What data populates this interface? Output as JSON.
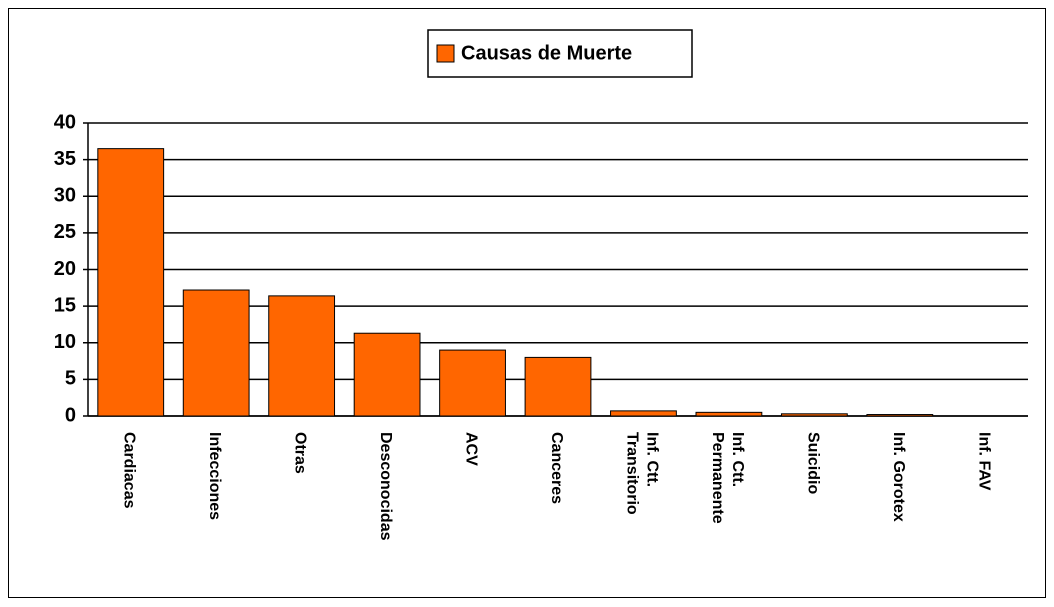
{
  "chart_data": {
    "type": "bar",
    "categories": [
      "Cardiacas",
      "Infecciones",
      "Otras",
      "Desconocidas",
      "ACV",
      "Canceres",
      "Inf. Ctt. Transitorio",
      "Inf. Ctt. Permanente",
      "Suicidio",
      "Inf. Gorotex",
      "Inf. FAV"
    ],
    "series": [
      {
        "name": "Causas de Muerte",
        "color": "#ff6600",
        "values": [
          36.5,
          17.2,
          16.4,
          11.3,
          9.0,
          8.0,
          0.7,
          0.5,
          0.3,
          0.2,
          0
        ]
      }
    ],
    "ylim": [
      0,
      40
    ],
    "yticks": [
      0,
      5,
      10,
      15,
      20,
      25,
      30,
      35,
      40
    ],
    "grid": true,
    "legend": "top"
  }
}
